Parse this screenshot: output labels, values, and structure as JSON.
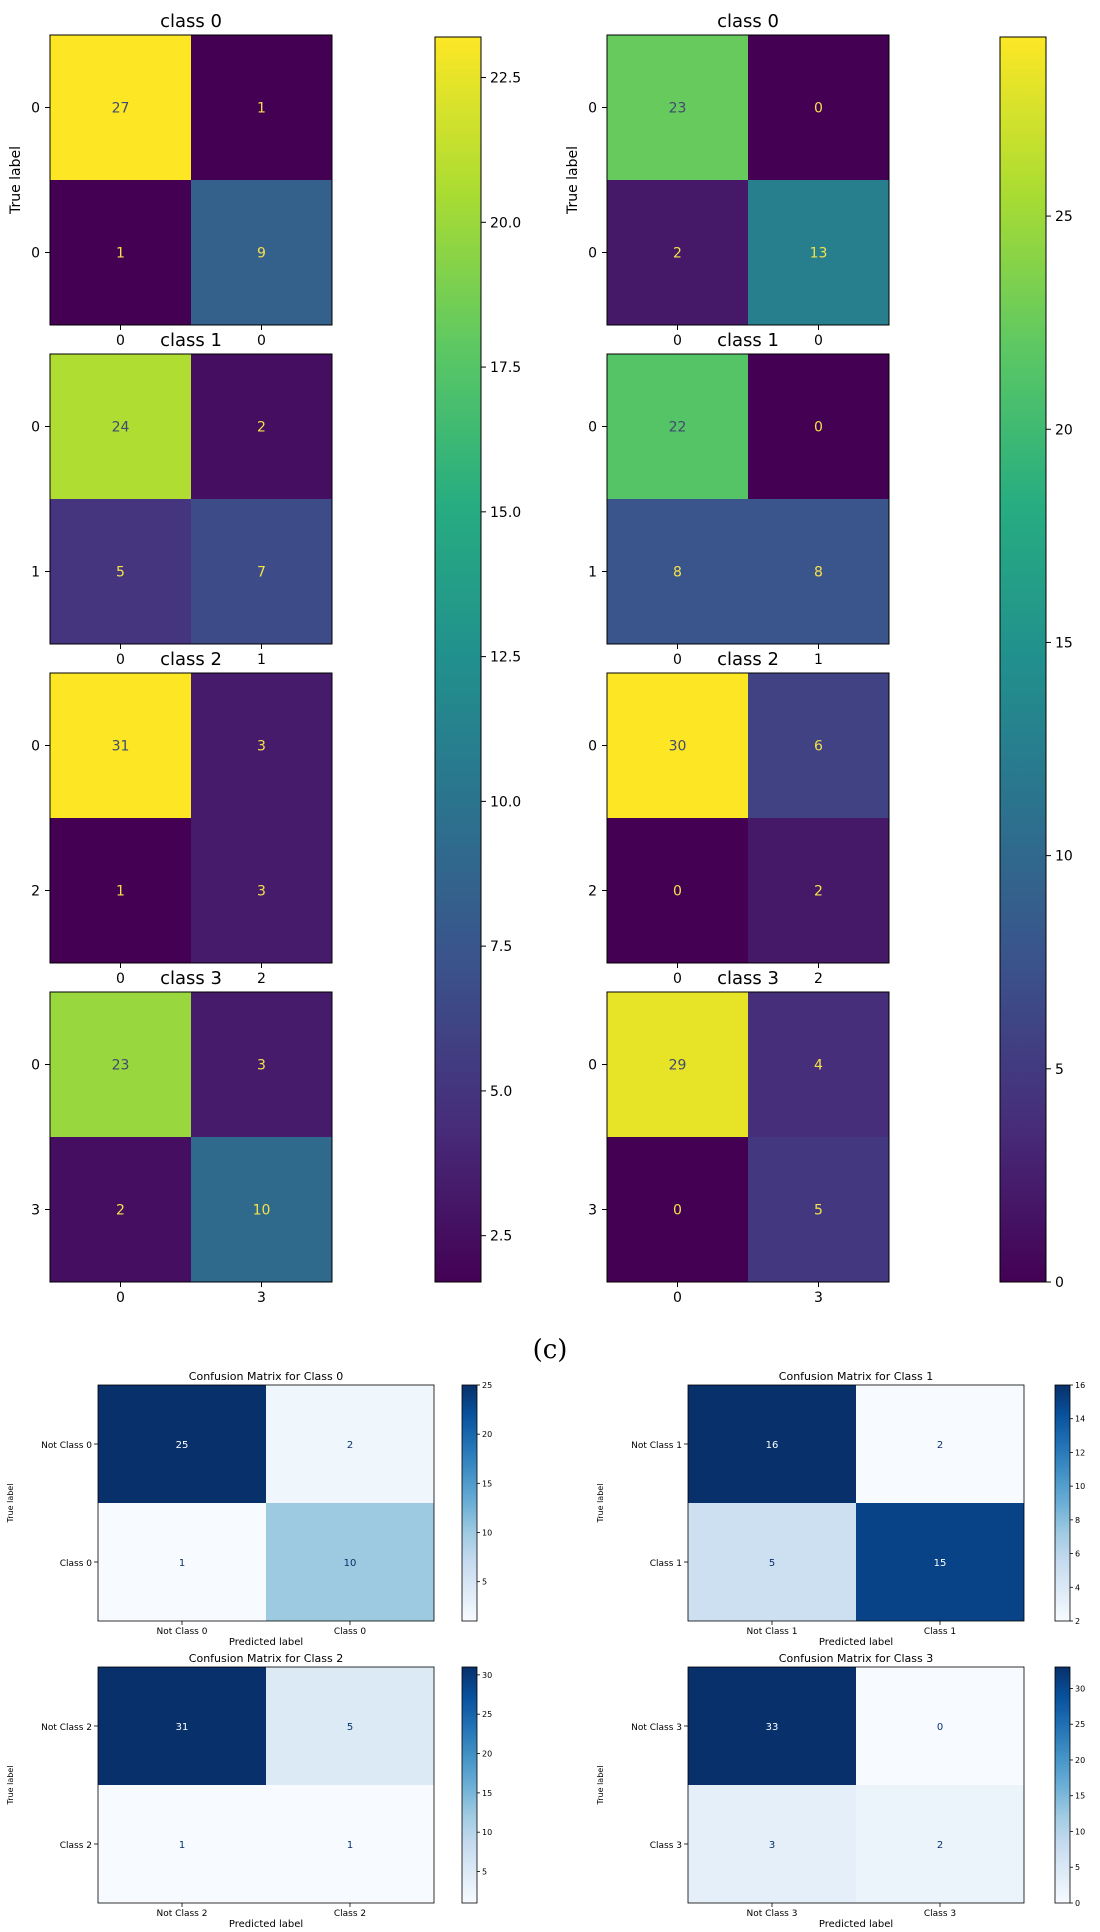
{
  "page": {
    "caption": "(c)"
  },
  "panel_a": {
    "ylabel": "True label",
    "colorbar_ticks": [
      "22.5",
      "20.0",
      "17.5",
      "15.0",
      "12.5",
      "10.0",
      "7.5",
      "5.0",
      "2.5"
    ]
  },
  "panel_b": {
    "ylabel": "True label",
    "colorbar_ticks": [
      "25",
      "20",
      "15",
      "10",
      "5",
      "0"
    ]
  },
  "chart_data": [
    {
      "type": "heatmap",
      "colormap": "viridis",
      "vmin": 1,
      "vmax": 27,
      "ylabel": "True label",
      "matrices": [
        {
          "title": "class 0",
          "row_labels": [
            "0",
            "0"
          ],
          "col_labels": [
            "0",
            "0"
          ],
          "values": [
            [
              27,
              1
            ],
            [
              1,
              9
            ]
          ]
        },
        {
          "title": "class 1",
          "row_labels": [
            "0",
            "1"
          ],
          "col_labels": [
            "0",
            "1"
          ],
          "values": [
            [
              24,
              2
            ],
            [
              5,
              7
            ]
          ]
        },
        {
          "title": "class 2",
          "row_labels": [
            "0",
            "2"
          ],
          "col_labels": [
            "0",
            "2"
          ],
          "values": [
            [
              31,
              3
            ],
            [
              1,
              3
            ]
          ]
        },
        {
          "title": "class 3",
          "row_labels": [
            "0",
            "3"
          ],
          "col_labels": [
            "0",
            "3"
          ],
          "values": [
            [
              23,
              3
            ],
            [
              2,
              10
            ]
          ]
        }
      ]
    },
    {
      "type": "heatmap",
      "colormap": "viridis",
      "vmin": 0,
      "vmax": 30,
      "ylabel": "True label",
      "matrices": [
        {
          "title": "class 0",
          "row_labels": [
            "0",
            "0"
          ],
          "col_labels": [
            "0",
            "0"
          ],
          "values": [
            [
              23,
              0
            ],
            [
              2,
              13
            ]
          ]
        },
        {
          "title": "class 1",
          "row_labels": [
            "0",
            "1"
          ],
          "col_labels": [
            "0",
            "1"
          ],
          "values": [
            [
              22,
              0
            ],
            [
              8,
              8
            ]
          ]
        },
        {
          "title": "class 2",
          "row_labels": [
            "0",
            "2"
          ],
          "col_labels": [
            "0",
            "2"
          ],
          "values": [
            [
              30,
              6
            ],
            [
              0,
              2
            ]
          ]
        },
        {
          "title": "class 3",
          "row_labels": [
            "0",
            "3"
          ],
          "col_labels": [
            "0",
            "3"
          ],
          "values": [
            [
              29,
              4
            ],
            [
              0,
              5
            ]
          ]
        }
      ]
    },
    {
      "type": "heatmap",
      "colormap": "blues",
      "xlabel": "Predicted label",
      "ylabel": "True label",
      "matrices": [
        {
          "title": "Confusion Matrix for Class 0",
          "row_labels": [
            "Not Class 0",
            "Class 0"
          ],
          "col_labels": [
            "Not Class 0",
            "Class 0"
          ],
          "values": [
            [
              25,
              2
            ],
            [
              1,
              10
            ]
          ],
          "vmin": 1,
          "vmax": 25,
          "colorbar_ticks": [
            "25",
            "20",
            "15",
            "10",
            "5"
          ]
        },
        {
          "title": "Confusion Matrix for Class 1",
          "row_labels": [
            "Not Class 1",
            "Class 1"
          ],
          "col_labels": [
            "Not Class 1",
            "Class 1"
          ],
          "values": [
            [
              16,
              2
            ],
            [
              5,
              15
            ]
          ],
          "vmin": 2,
          "vmax": 16,
          "colorbar_ticks": [
            "16",
            "14",
            "12",
            "10",
            "8",
            "6",
            "4",
            "2"
          ]
        },
        {
          "title": "Confusion Matrix for Class 2",
          "row_labels": [
            "Not Class 2",
            "Class 2"
          ],
          "col_labels": [
            "Not Class 2",
            "Class 2"
          ],
          "values": [
            [
              31,
              5
            ],
            [
              1,
              1
            ]
          ],
          "vmin": 1,
          "vmax": 31,
          "colorbar_ticks": [
            "30",
            "25",
            "20",
            "15",
            "10",
            "5"
          ]
        },
        {
          "title": "Confusion Matrix for Class 3",
          "row_labels": [
            "Not Class 3",
            "Class 3"
          ],
          "col_labels": [
            "Not Class 3",
            "Class 3"
          ],
          "values": [
            [
              33,
              0
            ],
            [
              3,
              2
            ]
          ],
          "vmin": 0,
          "vmax": 33,
          "colorbar_ticks": [
            "30",
            "25",
            "20",
            "15",
            "10",
            "5",
            "0"
          ]
        }
      ]
    }
  ]
}
